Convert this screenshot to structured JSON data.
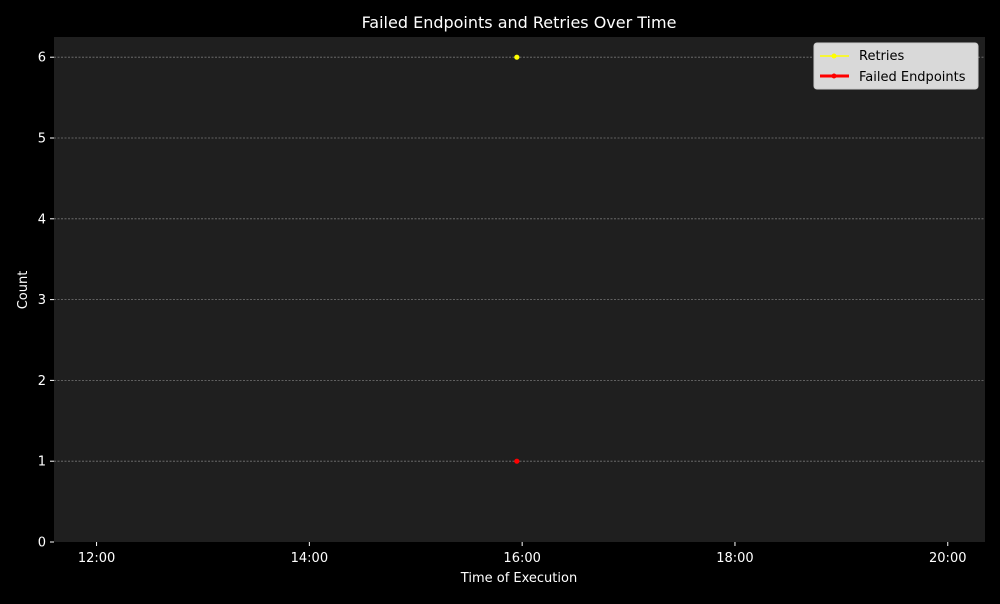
{
  "chart_data": {
    "type": "line",
    "title": "Failed Endpoints and Retries Over Time",
    "xlabel": "Time of Execution",
    "ylabel": "Count",
    "x_ticks": [
      "12:00",
      "14:00",
      "16:00",
      "18:00",
      "20:00"
    ],
    "x_tick_hours": [
      12,
      14,
      16,
      18,
      20
    ],
    "xlim_hours": [
      11.6,
      20.35
    ],
    "y_ticks": [
      "0",
      "1",
      "2",
      "3",
      "4",
      "5",
      "6"
    ],
    "ylim": [
      0,
      6.25
    ],
    "grid": "horizontal",
    "legend_position": "top-right",
    "series": [
      {
        "name": "Retries",
        "color": "#ffff00",
        "x": [
          "15:57"
        ],
        "values": [
          6
        ]
      },
      {
        "name": "Failed Endpoints",
        "color": "#ff0000",
        "x": [
          "15:57"
        ],
        "values": [
          1
        ]
      }
    ],
    "colors": {
      "figure_background": "#000000",
      "plot_background": "#1f1f1f",
      "grid": "#777777",
      "text": "#ffffff",
      "legend_background": "#d9d9d9"
    }
  }
}
